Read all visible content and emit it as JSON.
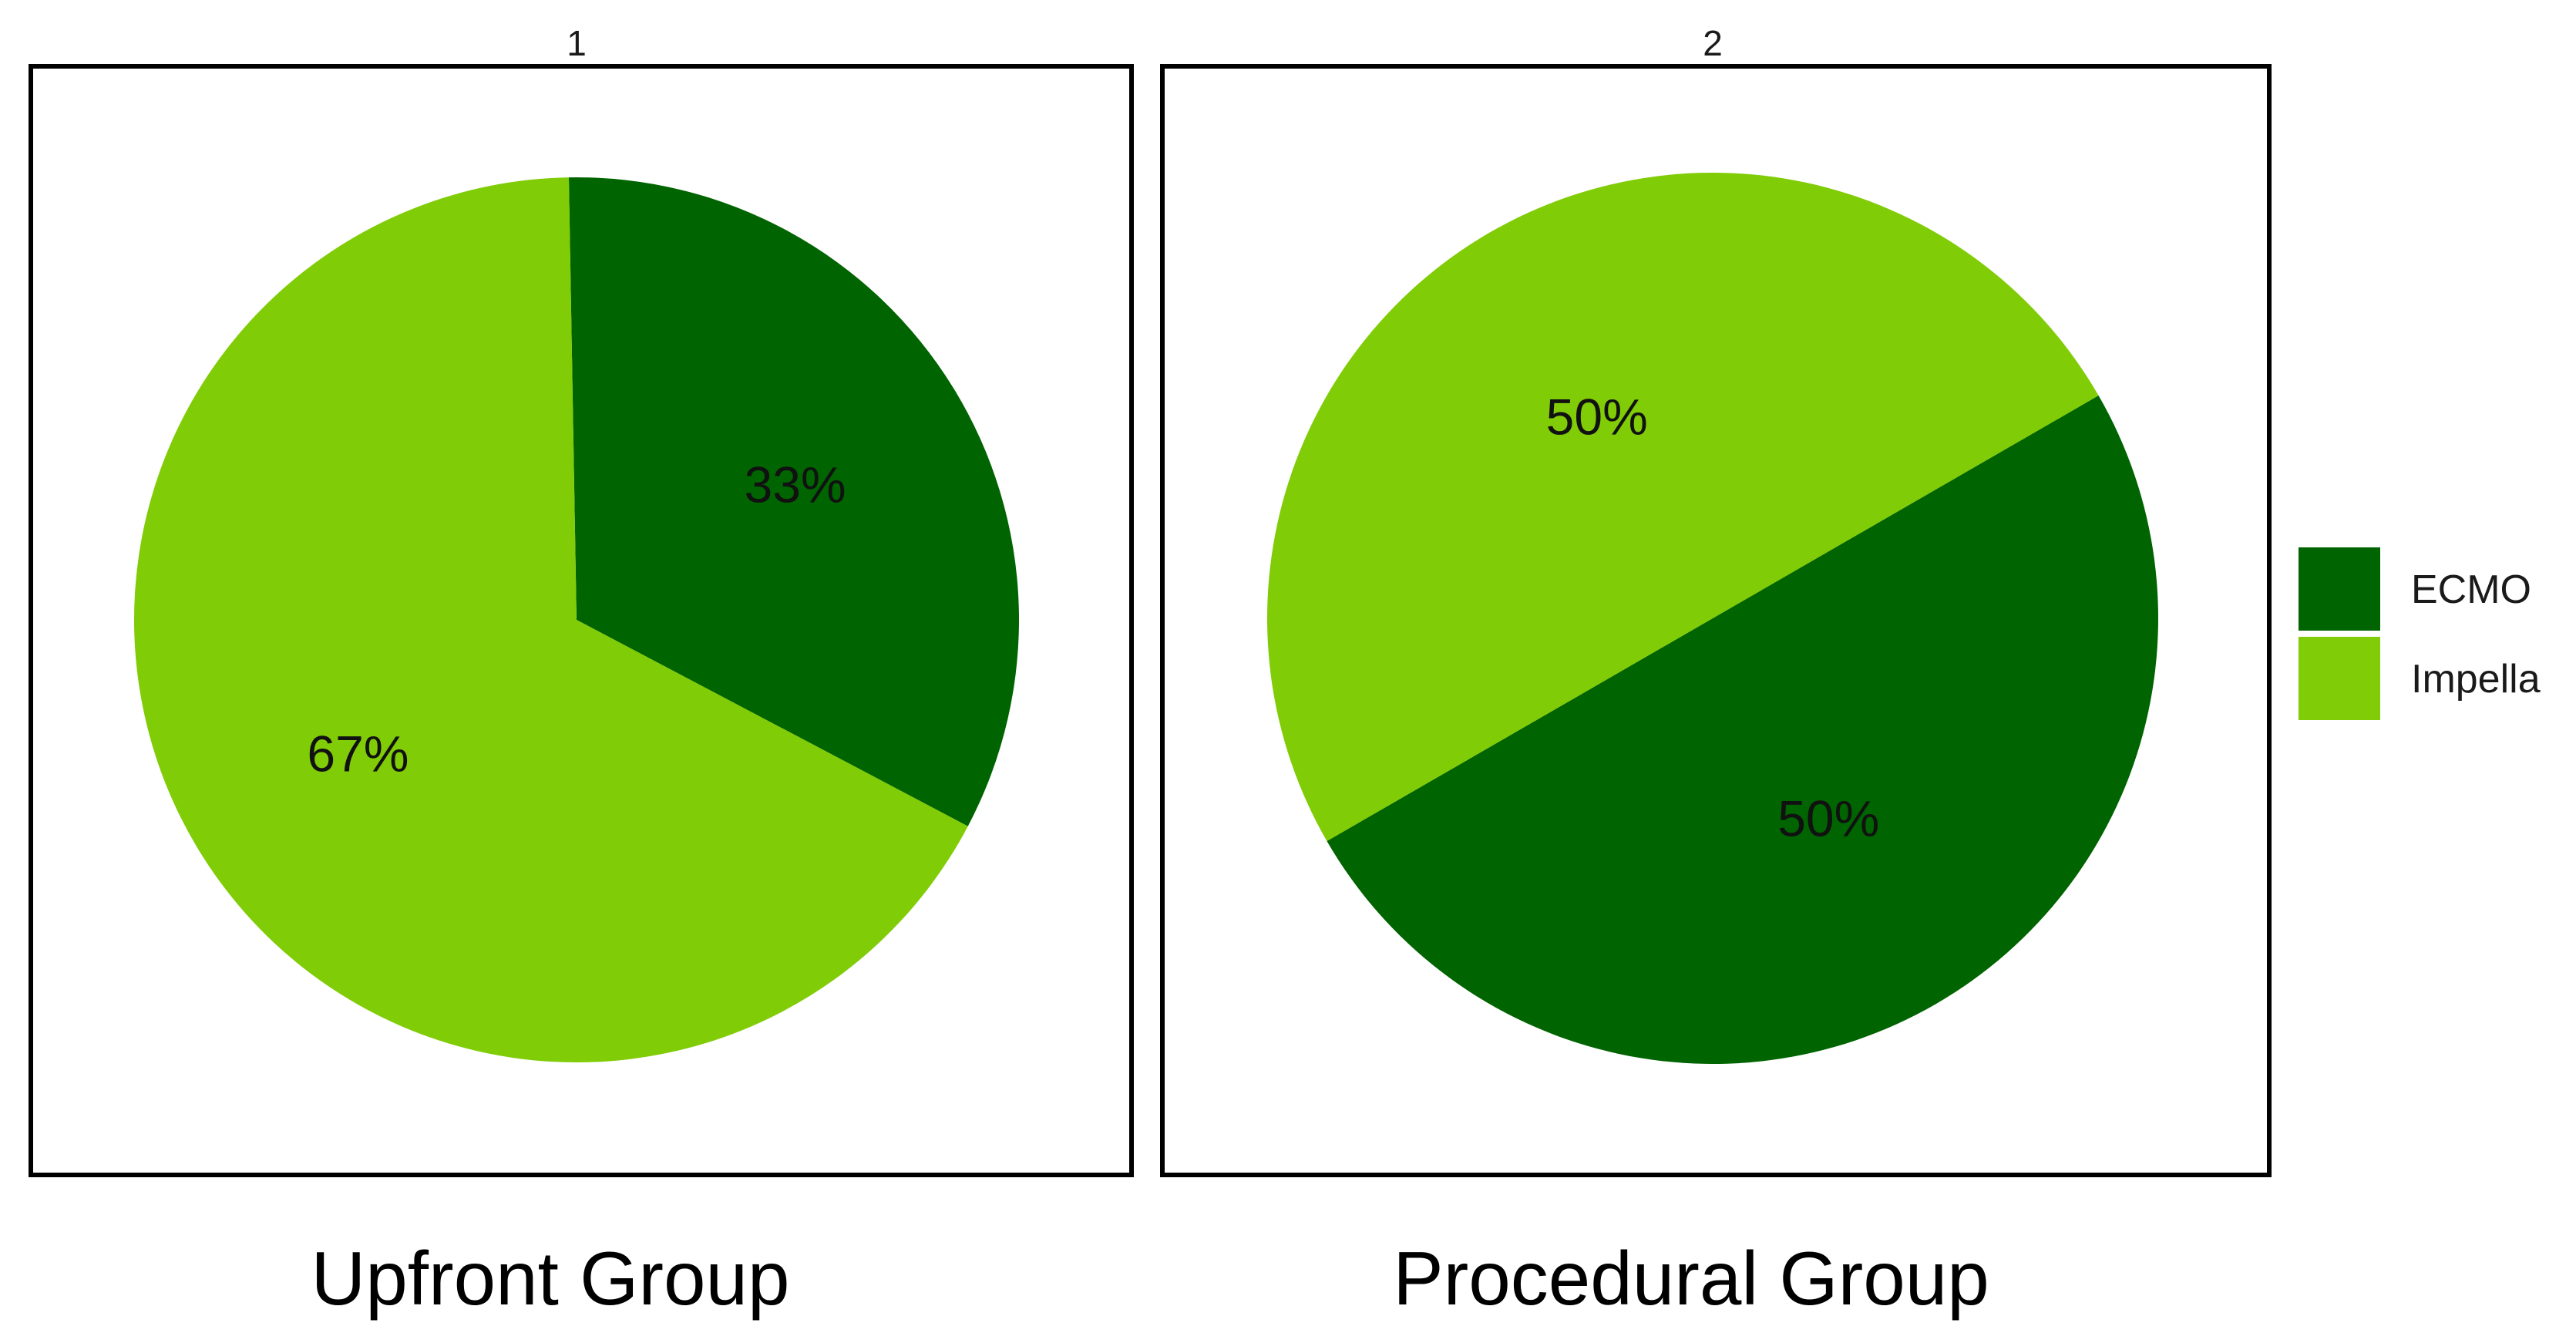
{
  "chart_data": {
    "type": "pie",
    "categories": [
      "ECMO",
      "Impella"
    ],
    "colors": {
      "ECMO": "#006400",
      "Impella": "#80CC07"
    },
    "legend_position": "right",
    "panels": [
      {
        "strip": "1",
        "caption": "Upfront Group",
        "slices": [
          {
            "category": "ECMO",
            "value": 33,
            "label": "33%"
          },
          {
            "category": "Impella",
            "value": 67,
            "label": "67%"
          }
        ]
      },
      {
        "strip": "2",
        "caption": "Procedural Group",
        "slices": [
          {
            "category": "ECMO",
            "value": 50,
            "label": "50%"
          },
          {
            "category": "Impella",
            "value": 50,
            "label": "50%"
          }
        ]
      }
    ],
    "legend": [
      {
        "label": "ECMO",
        "color": "#006400"
      },
      {
        "label": "Impella",
        "color": "#80CC07"
      }
    ]
  }
}
